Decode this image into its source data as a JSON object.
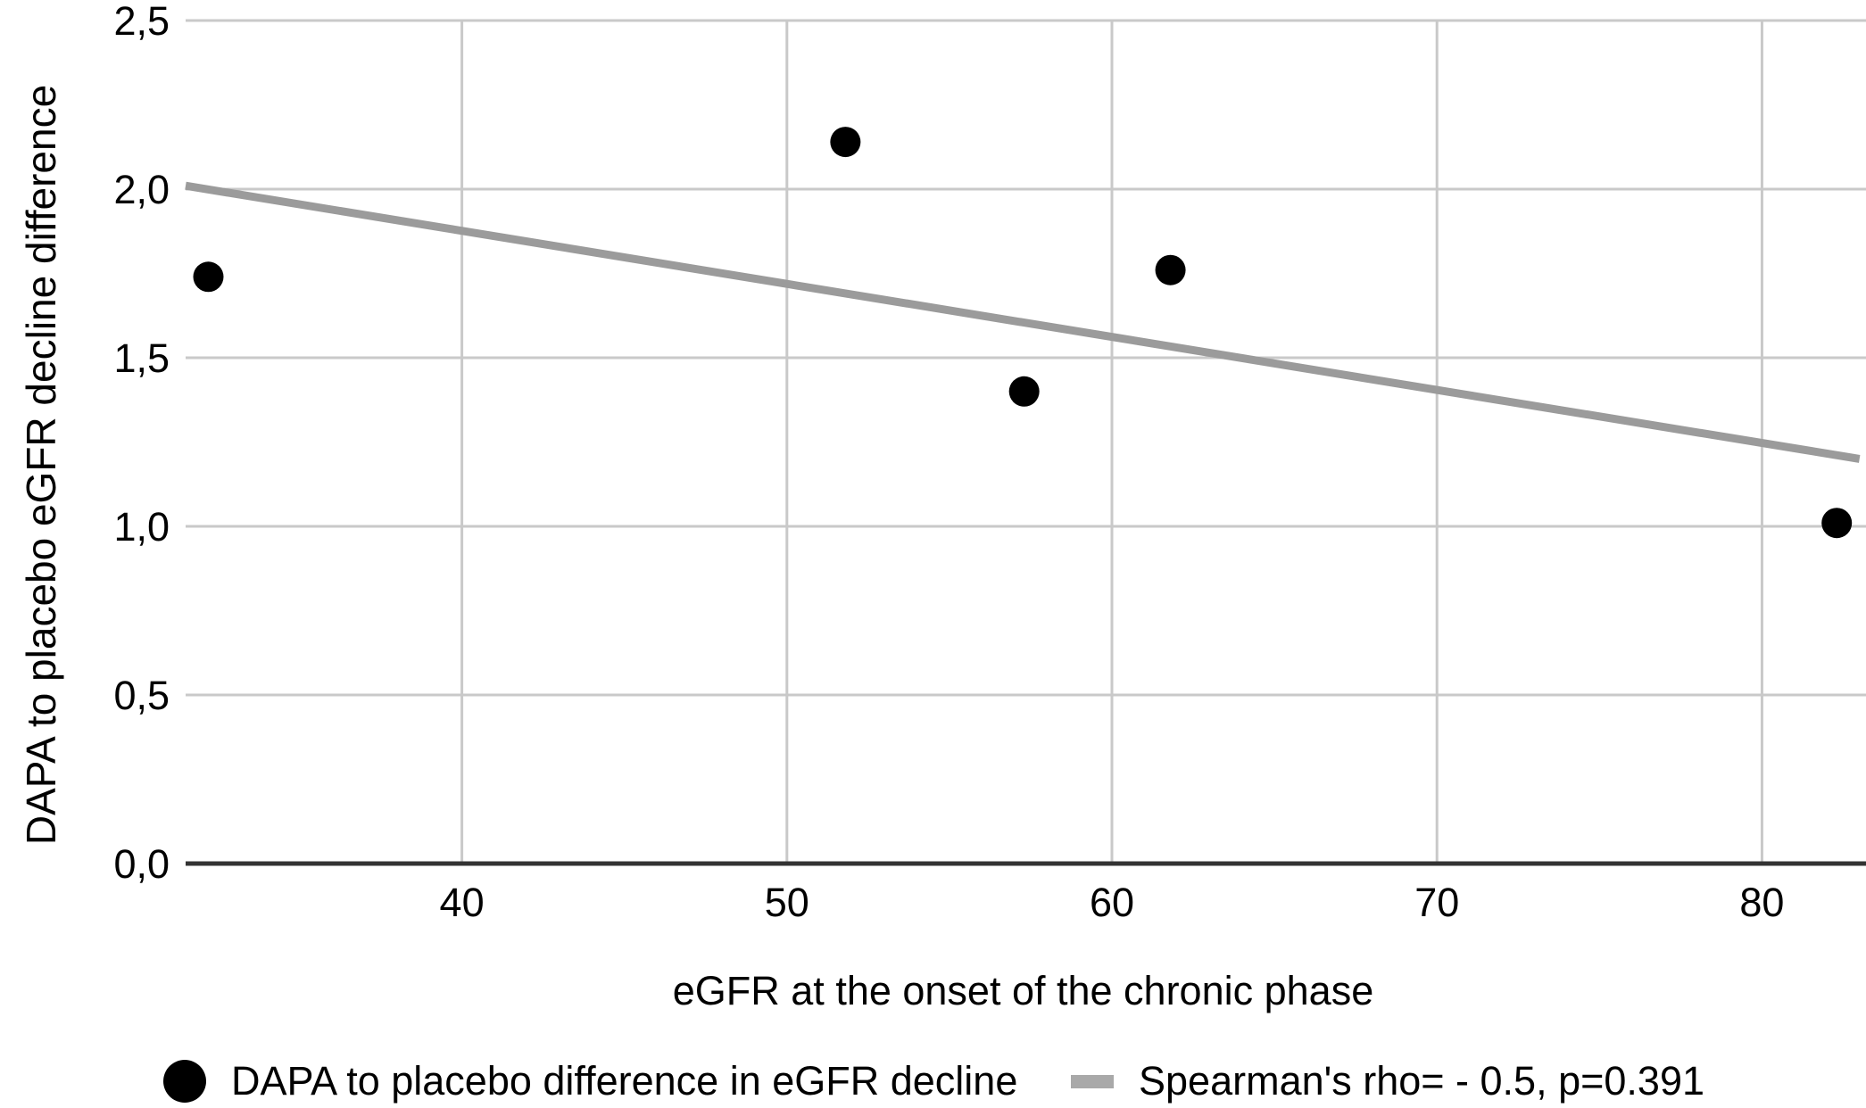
{
  "chart_data": {
    "type": "scatter",
    "title": "",
    "xlabel": "eGFR at the onset of the chronic phase",
    "ylabel": "DAPA to placebo eGFR decline difference",
    "xlim": [
      31.5,
      83.2
    ],
    "ylim": [
      0,
      2.5
    ],
    "grid": true,
    "x_ticks": [
      {
        "value": 40,
        "label": "40"
      },
      {
        "value": 50,
        "label": "50"
      },
      {
        "value": 60,
        "label": "60"
      },
      {
        "value": 70,
        "label": "70"
      },
      {
        "value": 80,
        "label": "80"
      }
    ],
    "y_ticks": [
      {
        "value": 0.0,
        "label": "0,0"
      },
      {
        "value": 0.5,
        "label": "0,5"
      },
      {
        "value": 1.0,
        "label": "1,0"
      },
      {
        "value": 1.5,
        "label": "1,5"
      },
      {
        "value": 2.0,
        "label": "2,0"
      },
      {
        "value": 2.5,
        "label": "2,5"
      }
    ],
    "series": [
      {
        "name": "DAPA to placebo difference in eGFR decline",
        "type": "scatter",
        "color": "#000000",
        "marker_radius": 17,
        "points": [
          {
            "x": 32.2,
            "y": 1.74
          },
          {
            "x": 51.8,
            "y": 2.14
          },
          {
            "x": 57.3,
            "y": 1.4
          },
          {
            "x": 61.8,
            "y": 1.76
          },
          {
            "x": 82.3,
            "y": 1.01
          }
        ]
      },
      {
        "name": "Spearman's rho= - 0.5, p=0.391",
        "type": "trendline",
        "color": "#9b9b9b",
        "stroke_width": 9,
        "points": [
          {
            "x": 31.5,
            "y": 2.01
          },
          {
            "x": 83.0,
            "y": 1.2
          }
        ]
      }
    ],
    "legend": {
      "position": "bottom",
      "items": [
        {
          "marker": "circle",
          "color": "#000000",
          "label": "DAPA to placebo difference in eGFR decline"
        },
        {
          "marker": "line",
          "color": "#a9a9a9",
          "label": "Spearman's rho= - 0.5, p=0.391"
        }
      ]
    },
    "colors": {
      "gridline": "#c9c9c9",
      "axis_line": "#333333",
      "tick_text": "#000000",
      "background": "#ffffff"
    }
  }
}
